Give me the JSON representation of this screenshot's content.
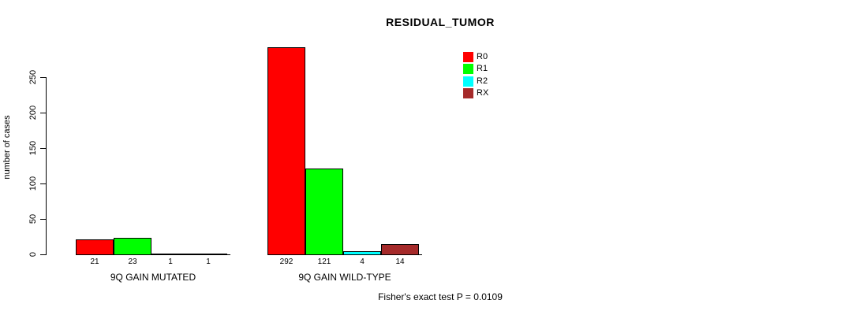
{
  "page": {
    "background_color": "#ffffff",
    "text_color": "#000000"
  },
  "chart_data": {
    "type": "bar",
    "title": "RESIDUAL_TUMOR",
    "ylabel": "number of cases",
    "xlabel": "",
    "annotation": "Fisher's exact test P = 0.0109",
    "yticks": [
      0,
      50,
      100,
      150,
      200,
      250
    ],
    "ylim": [
      0,
      292
    ],
    "grid": false,
    "legend_position": "top-right",
    "legend": [
      {
        "name": "R0",
        "color": "#ff0000"
      },
      {
        "name": "R1",
        "color": "#00ff00"
      },
      {
        "name": "R2",
        "color": "#00ffff"
      },
      {
        "name": "RX",
        "color": "#a52a2a"
      }
    ],
    "categories": [
      "9Q GAIN MUTATED",
      "9Q GAIN WILD-TYPE"
    ],
    "series": [
      {
        "name": "R0",
        "values": [
          21,
          292
        ]
      },
      {
        "name": "R1",
        "values": [
          23,
          121
        ]
      },
      {
        "name": "R2",
        "values": [
          1,
          4
        ]
      },
      {
        "name": "RX",
        "values": [
          1,
          14
        ]
      }
    ],
    "groups": [
      {
        "label": "9Q GAIN MUTATED",
        "values": [
          21,
          23,
          1,
          1
        ]
      },
      {
        "label": "9Q GAIN WILD-TYPE",
        "values": [
          292,
          121,
          4,
          14
        ]
      }
    ]
  }
}
